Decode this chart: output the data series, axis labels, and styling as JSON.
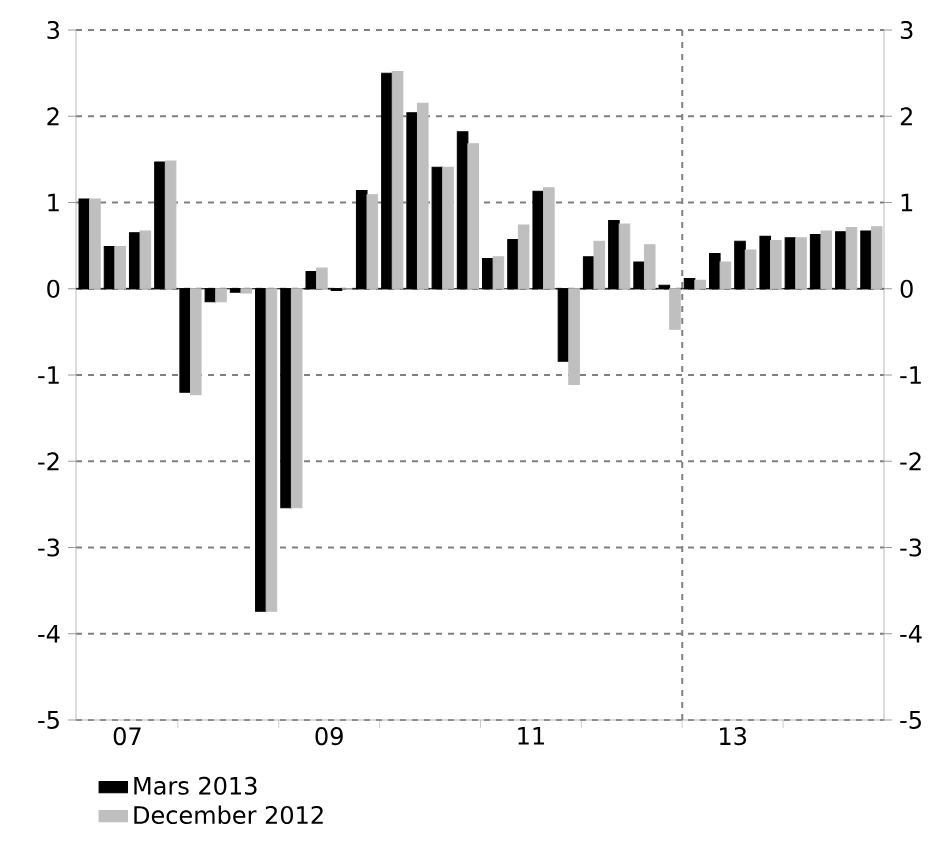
{
  "chart_data": {
    "type": "bar",
    "x": [
      6.625,
      6.875,
      7.125,
      7.375,
      7.625,
      7.875,
      8.125,
      8.375,
      8.625,
      8.875,
      9.125,
      9.375,
      9.625,
      9.875,
      10.125,
      10.375,
      10.625,
      10.875,
      11.125,
      11.375,
      11.625,
      11.875,
      12.125,
      12.375,
      12.625,
      12.875,
      13.125,
      13.375,
      13.625,
      13.875,
      14.125,
      14.375
    ],
    "series": [
      {
        "name": "Mars 2013",
        "color": "#000000",
        "values": [
          1.04,
          0.49,
          0.65,
          1.47,
          -1.2,
          -0.15,
          -0.04,
          -3.74,
          -2.54,
          0.2,
          -0.02,
          1.14,
          2.5,
          2.04,
          1.41,
          1.82,
          0.35,
          0.57,
          1.13,
          -0.84,
          0.37,
          0.79,
          0.31,
          0.04,
          0.12,
          0.41,
          0.55,
          0.61,
          0.59,
          0.63,
          0.66,
          0.67
        ]
      },
      {
        "name": "December 2012",
        "color": "#bfbfbf",
        "values": [
          1.04,
          0.49,
          0.67,
          1.48,
          -1.23,
          -0.15,
          -0.05,
          -3.74,
          -2.54,
          0.24,
          0,
          1.09,
          2.52,
          2.15,
          1.41,
          1.68,
          0.37,
          0.74,
          1.17,
          -1.11,
          0.55,
          0.75,
          0.51,
          -0.47,
          0.1,
          0.31,
          0.45,
          0.56,
          0.59,
          0.67,
          0.71,
          0.72
        ]
      }
    ],
    "xlim": [
      6.49,
      14.5
    ],
    "xticks": [
      {
        "value": 7,
        "label": "07"
      },
      {
        "value": 9,
        "label": "09"
      },
      {
        "value": 11,
        "label": "11"
      },
      {
        "value": 13,
        "label": "13"
      },
      {
        "value": 7.5,
        "label": null
      },
      {
        "value": 8.5,
        "label": null
      },
      {
        "value": 9.5,
        "label": null
      },
      {
        "value": 10.5,
        "label": null
      },
      {
        "value": 11.5,
        "label": null
      },
      {
        "value": 12.5,
        "label": null
      },
      {
        "value": 13.5,
        "label": null
      }
    ],
    "ylim": [
      -5,
      3
    ],
    "yticks": [
      -5,
      -4,
      -3,
      -2,
      -1,
      0,
      1,
      2,
      3
    ],
    "y2lim": [
      -5,
      3
    ],
    "y2ticks": [
      -5,
      -4,
      -3,
      -2,
      -1,
      0,
      1,
      2,
      3
    ],
    "grid": "y",
    "legend": "bottom left",
    "ref_lines": [
      {
        "axis": "x",
        "value": 12.5,
        "color": "#808080",
        "line_style": "dashed"
      }
    ]
  }
}
